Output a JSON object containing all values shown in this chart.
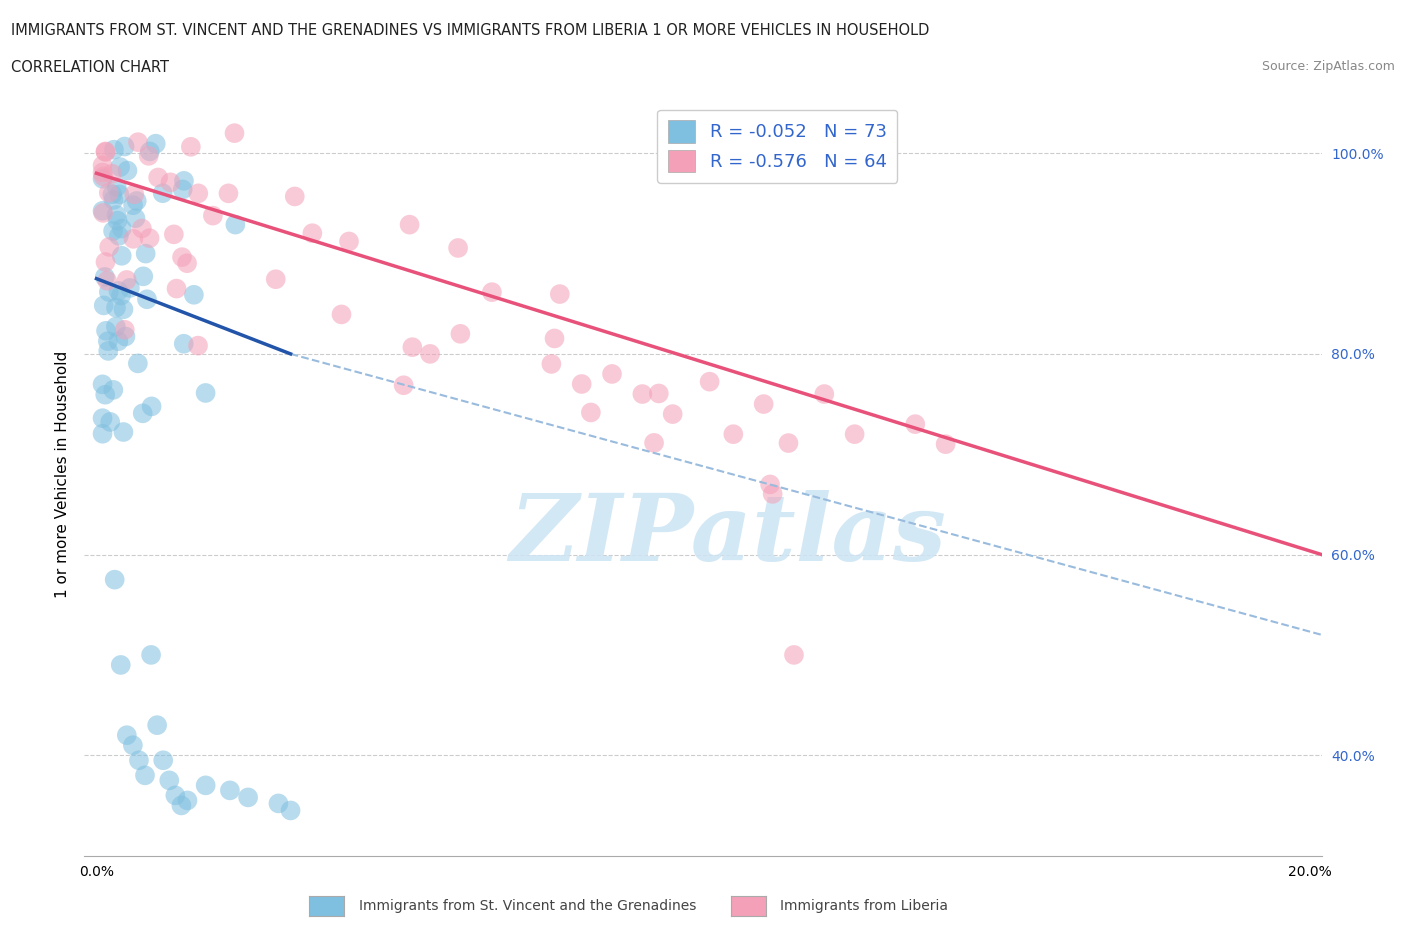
{
  "title_line1": "IMMIGRANTS FROM ST. VINCENT AND THE GRENADINES VS IMMIGRANTS FROM LIBERIA 1 OR MORE VEHICLES IN HOUSEHOLD",
  "title_line2": "CORRELATION CHART",
  "source_text": "Source: ZipAtlas.com",
  "ylabel": "1 or more Vehicles in Household",
  "xlim": [
    -0.002,
    0.202
  ],
  "ylim": [
    0.3,
    1.06
  ],
  "xtick_positions": [
    0.0,
    0.04,
    0.08,
    0.12,
    0.16,
    0.2
  ],
  "xticklabels": [
    "0.0%",
    "",
    "",
    "",
    "",
    "20.0%"
  ],
  "yticks_right": [
    0.4,
    0.6,
    0.8,
    1.0
  ],
  "ytick_right_labels": [
    "40.0%",
    "60.0%",
    "80.0%",
    "100.0%"
  ],
  "grid_color": "#cccccc",
  "legend_label1": "Immigrants from St. Vincent and the Grenadines",
  "legend_label2": "Immigrants from Liberia",
  "color_blue": "#7fbfdf",
  "color_pink": "#f4a0b8",
  "color_blue_line": "#2255aa",
  "color_pink_line": "#e8517a",
  "color_dashed": "#99bbdd",
  "color_legend_text": "#3366cc",
  "blue_line_x": [
    0.0,
    0.032
  ],
  "blue_line_y": [
    0.875,
    0.8
  ],
  "pink_line_x": [
    0.0,
    0.202
  ],
  "pink_line_y": [
    0.98,
    0.6
  ],
  "dash_line_x": [
    0.032,
    0.202
  ],
  "dash_line_y": [
    0.8,
    0.52
  ],
  "watermark_text": "ZIPatlas"
}
